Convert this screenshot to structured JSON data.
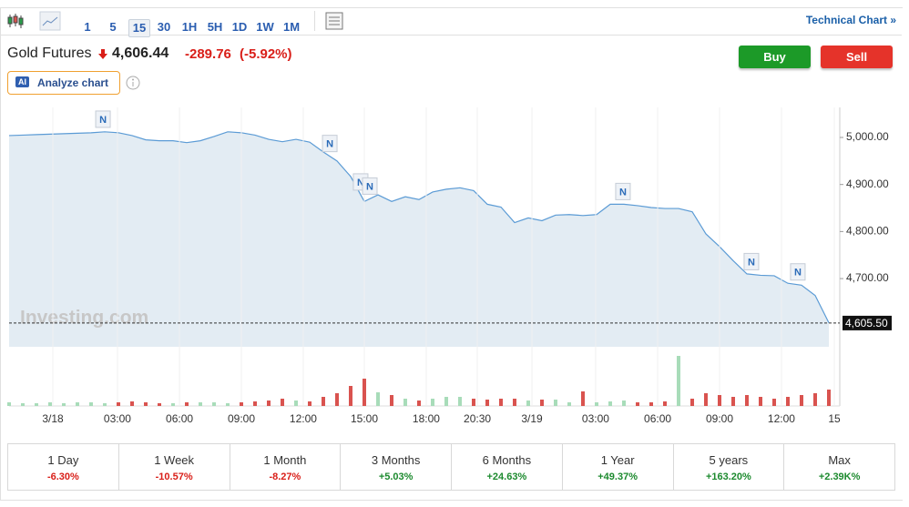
{
  "toolbar": {
    "intervals": [
      "1",
      "5",
      "15",
      "30",
      "1H",
      "5H",
      "1D",
      "1W",
      "1M"
    ],
    "selected": "15",
    "technical": "Technical Chart »"
  },
  "header": {
    "name": "Gold Futures",
    "price": "4,606.44",
    "change": "-289.76",
    "change_pct": "(-5.92%)",
    "buy": "Buy",
    "sell": "Sell",
    "ai_badge": "AI",
    "analyze": "Analyze chart"
  },
  "chart": {
    "type": "area",
    "watermark": "Investing.com",
    "color": "#5b9bd5",
    "fill": "#e3ecf3",
    "values": [
      5004,
      5005,
      5006,
      5007,
      5008,
      5009,
      5010,
      5012,
      5010,
      5004,
      4995,
      4993,
      4993,
      4989,
      4993,
      5002,
      5012,
      5010,
      5005,
      4996,
      4991,
      4996,
      4990,
      4969,
      4950,
      4917,
      4864,
      4878,
      4864,
      4874,
      4868,
      4884,
      4890,
      4893,
      4887,
      4858,
      4852,
      4819,
      4829,
      4823,
      4835,
      4836,
      4834,
      4836,
      4858,
      4858,
      4855,
      4851,
      4849,
      4849,
      4842,
      4795,
      4768,
      4738,
      4710,
      4707,
      4706,
      4690,
      4686,
      4664,
      4606
    ],
    "volume": [
      4,
      3,
      3,
      4,
      3,
      4,
      4,
      3,
      4,
      5,
      4,
      3,
      3,
      4,
      4,
      4,
      3,
      4,
      5,
      6,
      8,
      6,
      5,
      10,
      14,
      22,
      30,
      15,
      12,
      8,
      6,
      8,
      10,
      10,
      8,
      7,
      8,
      8,
      6,
      7,
      7,
      4,
      16,
      4,
      5,
      6,
      4,
      4,
      5,
      55,
      8,
      14,
      12,
      10,
      12,
      10,
      8,
      10,
      12,
      14,
      18
    ],
    "vlim": [
      0,
      60
    ],
    "up_color": "#a8dcb9",
    "down_color": "#d9534f",
    "xlim": [
      0,
      60
    ],
    "ylim": [
      4555,
      5060
    ],
    "yticks": [
      {
        "value": 5000,
        "label": "5,000.00"
      },
      {
        "value": 4900,
        "label": "4,900.00"
      },
      {
        "value": 4800,
        "label": "4,800.00"
      },
      {
        "value": 4700,
        "label": "4,700.00"
      }
    ],
    "last": {
      "value": 4605.5,
      "label": "4,605.50"
    },
    "xticks": [
      {
        "value": 3.2,
        "label": "3/18"
      },
      {
        "value": 7.93,
        "label": "03:00"
      },
      {
        "value": 12.47,
        "label": "06:00"
      },
      {
        "value": 17,
        "label": "09:00"
      },
      {
        "value": 21.53,
        "label": "12:00"
      },
      {
        "value": 26,
        "label": "15:00"
      },
      {
        "value": 30.53,
        "label": "18:00"
      },
      {
        "value": 34.27,
        "label": "20:30"
      },
      {
        "value": 38.27,
        "label": "3/19"
      },
      {
        "value": 42.93,
        "label": "03:00"
      },
      {
        "value": 47.47,
        "label": "06:00"
      },
      {
        "value": 52,
        "label": "09:00"
      },
      {
        "value": 56.53,
        "label": "12:00"
      },
      {
        "value": 60.4,
        "label": "15"
      }
    ],
    "news": [
      {
        "x": 6.87,
        "label": "N"
      },
      {
        "x": 23.47,
        "label": "N"
      },
      {
        "x": 25.73,
        "label": "N"
      },
      {
        "x": 26.4,
        "label": "N"
      },
      {
        "x": 44.93,
        "label": "N"
      },
      {
        "x": 54.33,
        "label": "N"
      },
      {
        "x": 57.73,
        "label": "N"
      }
    ]
  },
  "performance": [
    {
      "period": "1 Day",
      "change": "-6.30%"
    },
    {
      "period": "1 Week",
      "change": "-10.57%"
    },
    {
      "period": "1 Month",
      "change": "-8.27%"
    },
    {
      "period": "3 Months",
      "change": "+5.03%"
    },
    {
      "period": "6 Months",
      "change": "+24.63%"
    },
    {
      "period": "1 Year",
      "change": "+49.37%"
    },
    {
      "period": "5 years",
      "change": "+163.20%"
    },
    {
      "period": "Max",
      "change": "+2.39K%"
    }
  ]
}
